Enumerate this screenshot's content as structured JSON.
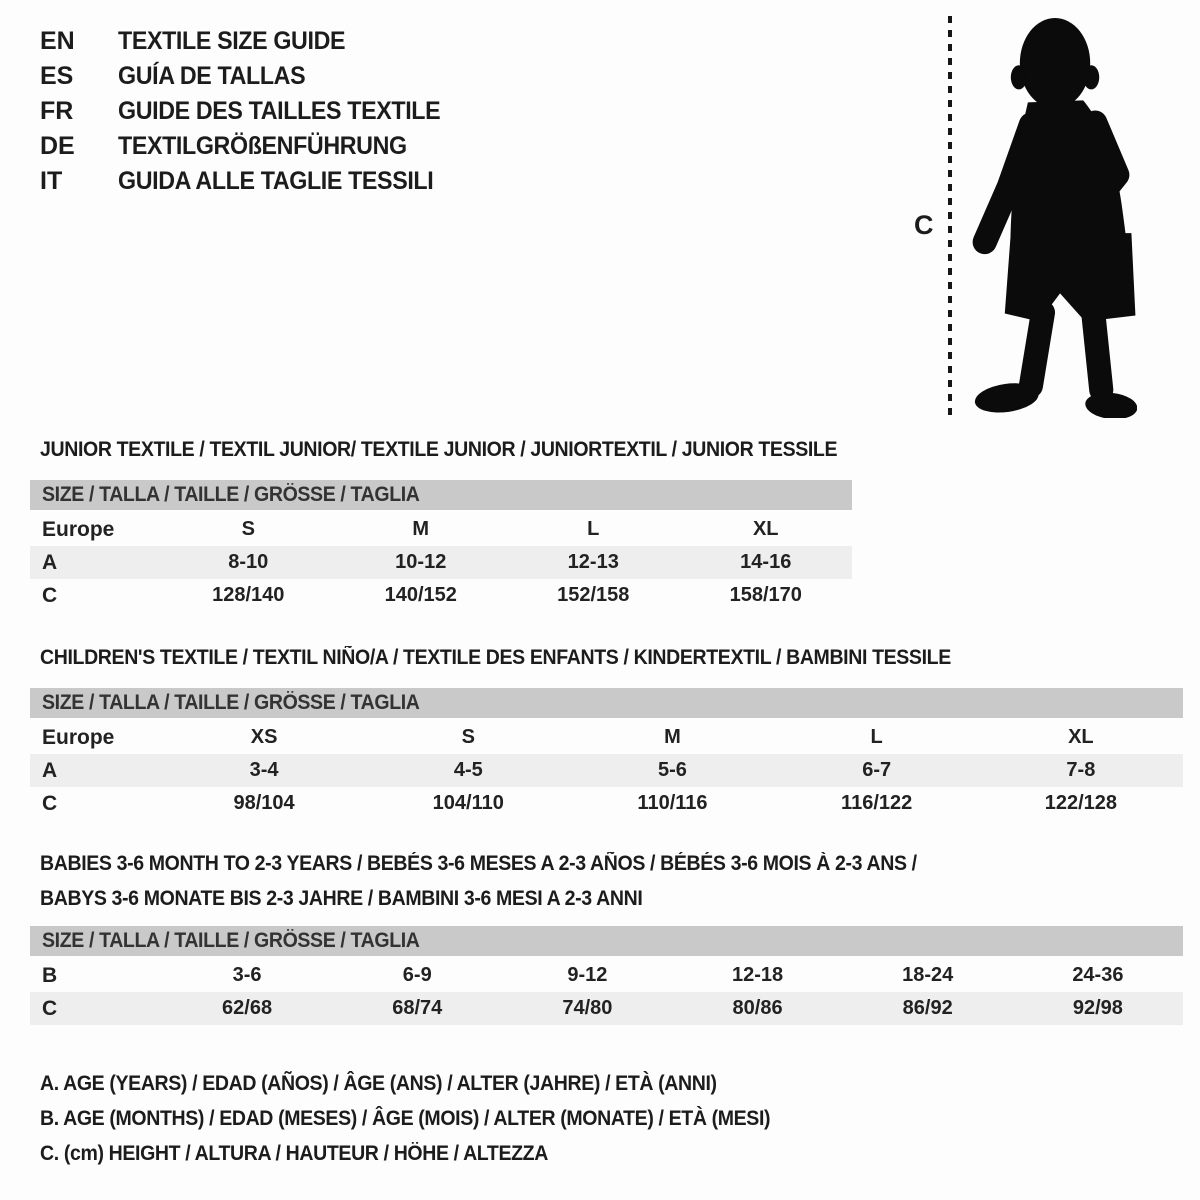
{
  "colors": {
    "header_bar": "#c9c9c9",
    "row_shade": "#eeeeee",
    "text": "#1c1c1c",
    "silhouette": "#0b0b0b"
  },
  "languages": [
    {
      "code": "EN",
      "label": "TEXTILE SIZE GUIDE"
    },
    {
      "code": "ES",
      "label": "GUÍA DE TALLAS"
    },
    {
      "code": "FR",
      "label": "GUIDE DES TAILLES TEXTILE"
    },
    {
      "code": "DE",
      "label": "TEXTILGRÖßENFÜHRUNG"
    },
    {
      "code": "IT",
      "label": "GUIDA ALLE TAGLIE TESSILI"
    }
  ],
  "figure": {
    "measure_label": "C"
  },
  "sections": [
    {
      "title": "JUNIOR TEXTILE / TEXTIL JUNIOR/ TEXTILE JUNIOR / JUNIORTEXTIL / JUNIOR TESSILE",
      "size_header": "SIZE / TALLA / TAILLE / GRÖSSE / TAGLIA",
      "rows": [
        {
          "label": "Europe",
          "values": [
            "S",
            "M",
            "L",
            "XL"
          ],
          "shaded": false
        },
        {
          "label": "A",
          "values": [
            "8-10",
            "10-12",
            "12-13",
            "14-16"
          ],
          "shaded": true
        },
        {
          "label": "C",
          "values": [
            "128/140",
            "140/152",
            "152/158",
            "158/170"
          ],
          "shaded": false
        }
      ]
    },
    {
      "title": "CHILDREN'S TEXTILE / TEXTIL NIÑO/A / TEXTILE DES ENFANTS / KINDERTEXTIL / BAMBINI TESSILE",
      "size_header": "SIZE / TALLA / TAILLE / GRÖSSE / TAGLIA",
      "rows": [
        {
          "label": "Europe",
          "values": [
            "XS",
            "S",
            "M",
            "L",
            "XL"
          ],
          "shaded": false
        },
        {
          "label": "A",
          "values": [
            "3-4",
            "4-5",
            "5-6",
            "6-7",
            "7-8"
          ],
          "shaded": true
        },
        {
          "label": "C",
          "values": [
            "98/104",
            "104/110",
            "110/116",
            "116/122",
            "122/128"
          ],
          "shaded": false
        }
      ]
    },
    {
      "title": "BABIES 3-6 MONTH TO 2-3 YEARS / BEBÉS 3-6 MESES A 2-3 AÑOS / BÉBÉS 3-6 MOIS À 2-3 ANS /\nBABYS 3-6 MONATE BIS 2-3 JAHRE / BAMBINI 3-6 MESI A 2-3 ANNI",
      "size_header": "SIZE / TALLA / TAILLE / GRÖSSE / TAGLIA",
      "rows": [
        {
          "label": "B",
          "values": [
            "3-6",
            "6-9",
            "9-12",
            "12-18",
            "18-24",
            "24-36"
          ],
          "shaded": false
        },
        {
          "label": "C",
          "values": [
            "62/68",
            "68/74",
            "74/80",
            "80/86",
            "86/92",
            "92/98"
          ],
          "shaded": true
        }
      ]
    }
  ],
  "footnotes": [
    "A. AGE (YEARS) / EDAD (AÑOS) / ÂGE (ANS) / ALTER (JAHRE) / ETÀ (ANNI)",
    "B. AGE (MONTHS) / EDAD (MESES) / ÂGE (MOIS) / ALTER (MONATE) / ETÀ (MESI)",
    "C. (cm) HEIGHT / ALTURA / HAUTEUR / HÖHE / ALTEZZA"
  ]
}
